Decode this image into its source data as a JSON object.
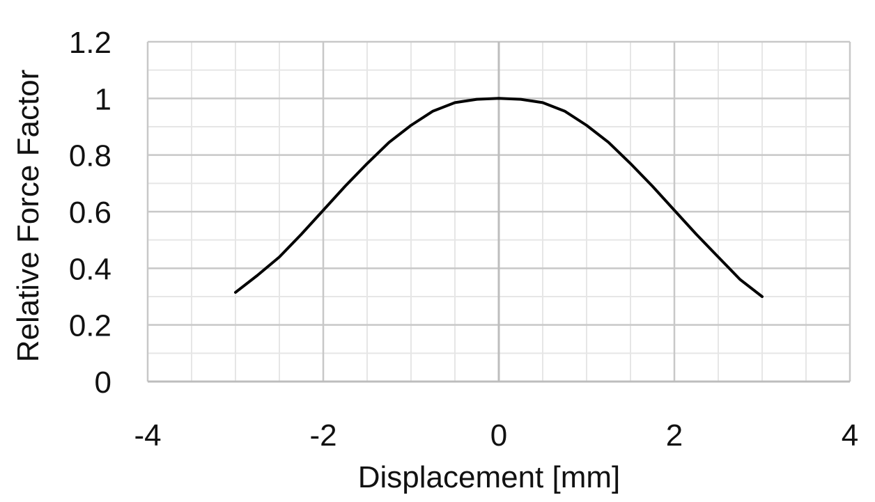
{
  "chart_data": {
    "type": "line",
    "title": "",
    "xlabel": "Displacement [mm]",
    "ylabel": "Relative Force Factor",
    "xlim": [
      -4,
      4
    ],
    "ylim": [
      0,
      1.2
    ],
    "x_ticks": [
      "-4",
      "-2",
      "0",
      "2",
      "4"
    ],
    "y_ticks": [
      "0",
      "0.2",
      "0.4",
      "0.6",
      "0.8",
      "1",
      "1.2"
    ],
    "grid": true,
    "legend": "none",
    "series": [
      {
        "color": "#000000",
        "x": [
          -3.0,
          -2.75,
          -2.5,
          -2.25,
          -2.0,
          -1.75,
          -1.5,
          -1.25,
          -1.0,
          -0.75,
          -0.5,
          -0.25,
          0.0,
          0.25,
          0.5,
          0.75,
          1.0,
          1.25,
          1.5,
          1.75,
          2.0,
          2.25,
          2.5,
          2.75,
          3.0
        ],
        "y": [
          0.315,
          0.375,
          0.44,
          0.52,
          0.605,
          0.69,
          0.77,
          0.845,
          0.905,
          0.955,
          0.985,
          0.997,
          1.0,
          0.997,
          0.985,
          0.955,
          0.905,
          0.845,
          0.77,
          0.69,
          0.605,
          0.52,
          0.44,
          0.36,
          0.3
        ]
      }
    ]
  }
}
